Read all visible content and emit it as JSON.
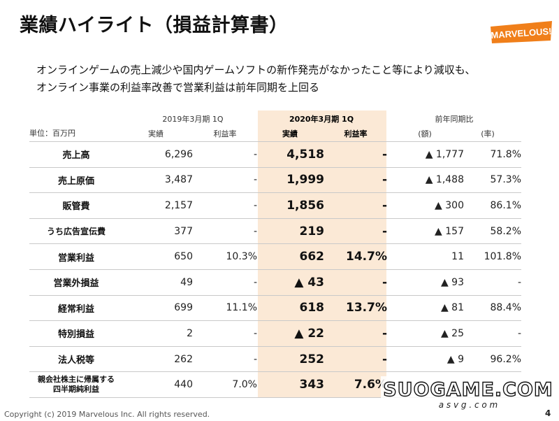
{
  "title": "業績ハイライト（損益計算書）",
  "logo": {
    "text": "MARVELOUS!",
    "color": "#f07f1a"
  },
  "lead": {
    "line1": "オンラインゲームの売上減少や国内ゲームソフトの新作発売がなかったこと等により減収も、",
    "line2": "オンライン事業の利益率改善で営業利益は前年同期を上回る"
  },
  "unit_label": "単位：百万円",
  "headers": {
    "prev_period": "2019年3月期 1Q",
    "curr_period": "2020年3月期 1Q",
    "yoy": "前年同期比",
    "actual": "実績",
    "margin": "利益率",
    "amount": "(額)",
    "rate": "(率)"
  },
  "rows": [
    {
      "label": "売上高",
      "prev": "6,296",
      "prev_margin": "-",
      "curr": "4,518",
      "curr_margin": "-",
      "diff": "▲ 1,777",
      "rate": "71.8%"
    },
    {
      "label": "売上原価",
      "prev": "3,487",
      "prev_margin": "-",
      "curr": "1,999",
      "curr_margin": "-",
      "diff": "▲ 1,488",
      "rate": "57.3%"
    },
    {
      "label": "販管費",
      "prev": "2,157",
      "prev_margin": "-",
      "curr": "1,856",
      "curr_margin": "-",
      "diff": "▲ 300",
      "rate": "86.1%"
    },
    {
      "label": "うち広告宣伝費",
      "prev": "377",
      "prev_margin": "-",
      "curr": "219",
      "curr_margin": "-",
      "diff": "▲ 157",
      "rate": "58.2%"
    },
    {
      "label": "営業利益",
      "prev": "650",
      "prev_margin": "10.3%",
      "curr": "662",
      "curr_margin": "14.7%",
      "diff": "11",
      "rate": "101.8%"
    },
    {
      "label": "営業外損益",
      "prev": "49",
      "prev_margin": "-",
      "curr": "▲ 43",
      "curr_margin": "-",
      "diff": "▲ 93",
      "rate": "-"
    },
    {
      "label": "経常利益",
      "prev": "699",
      "prev_margin": "11.1%",
      "curr": "618",
      "curr_margin": "13.7%",
      "diff": "▲ 81",
      "rate": "88.4%"
    },
    {
      "label": "特別損益",
      "prev": "2",
      "prev_margin": "-",
      "curr": "▲ 22",
      "curr_margin": "-",
      "diff": "▲ 25",
      "rate": "-"
    },
    {
      "label": "法人税等",
      "prev": "262",
      "prev_margin": "-",
      "curr": "252",
      "curr_margin": "-",
      "diff": "▲ 9",
      "rate": "96.2%"
    },
    {
      "label_line1": "親会社株主に帰属する",
      "label_line2": "四半期純利益",
      "prev": "440",
      "prev_margin": "7.0%",
      "curr": "343",
      "curr_margin": "7.6%",
      "diff": "",
      "rate": ""
    }
  ],
  "footer": "Copyright (c) 2019 Marvelous Inc. All rights reserved.",
  "page_number": "4",
  "watermark": {
    "text": "SUOGAME.COM",
    "subtext": "a s v g . c o m"
  },
  "colors": {
    "highlight_column": "#fbe9d6",
    "logo_orange": "#f07f1a"
  }
}
